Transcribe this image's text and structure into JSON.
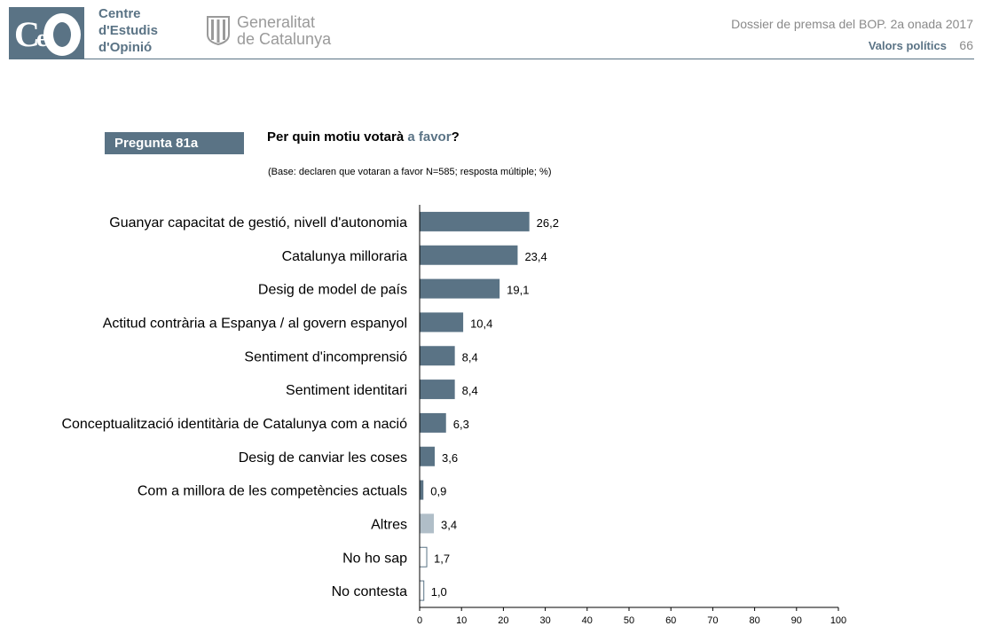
{
  "header": {
    "org_line1": "Centre",
    "org_line2": "d'Estudis",
    "org_line3": "d'Opinió",
    "gov_line1": "Generalitat",
    "gov_line2": "de Catalunya",
    "dossier": "Dossier de premsa del BOP. 2a onada 2017",
    "section": "Valors polítics",
    "page": "66"
  },
  "question": {
    "label": "Pregunta 81a",
    "title_pre": "Per quin motiu votarà ",
    "title_highlight": "a favor",
    "title_post": "?",
    "base": "(Base: declaren que votaran a favor N=585; resposta múltiple; %)"
  },
  "colors": {
    "accent": "#5a7385",
    "bar_main": "#5a7385",
    "bar_other": "#b0bec8",
    "bar_empty": "#ffffff"
  },
  "chart_data": {
    "type": "bar",
    "orientation": "horizontal",
    "categories": [
      "Guanyar capacitat de gestió, nivell d'autonomia",
      "Catalunya milloraria",
      "Desig de model de país",
      "Actitud contrària a Espanya / al govern espanyol",
      "Sentiment d'incomprensió",
      "Sentiment identitari",
      "Conceptualització identitària de Catalunya com a nació",
      "Desig de canviar les coses",
      "Com a millora de les competències actuals",
      "Altres",
      "No ho sap",
      "No contesta"
    ],
    "values": [
      26.2,
      23.4,
      19.1,
      10.4,
      8.4,
      8.4,
      6.3,
      3.6,
      0.9,
      3.4,
      1.7,
      1.0
    ],
    "value_labels": [
      "26,2",
      "23,4",
      "19,1",
      "10,4",
      "8,4",
      "8,4",
      "6,3",
      "3,6",
      "0,9",
      "3,4",
      "1,7",
      "1,0"
    ],
    "bar_styles": [
      "main",
      "main",
      "main",
      "main",
      "main",
      "main",
      "main",
      "main",
      "main",
      "other",
      "empty",
      "empty"
    ],
    "xlim": [
      0,
      100
    ],
    "xticks": [
      0,
      10,
      20,
      30,
      40,
      50,
      60,
      70,
      80,
      90,
      100
    ],
    "grid": false
  }
}
